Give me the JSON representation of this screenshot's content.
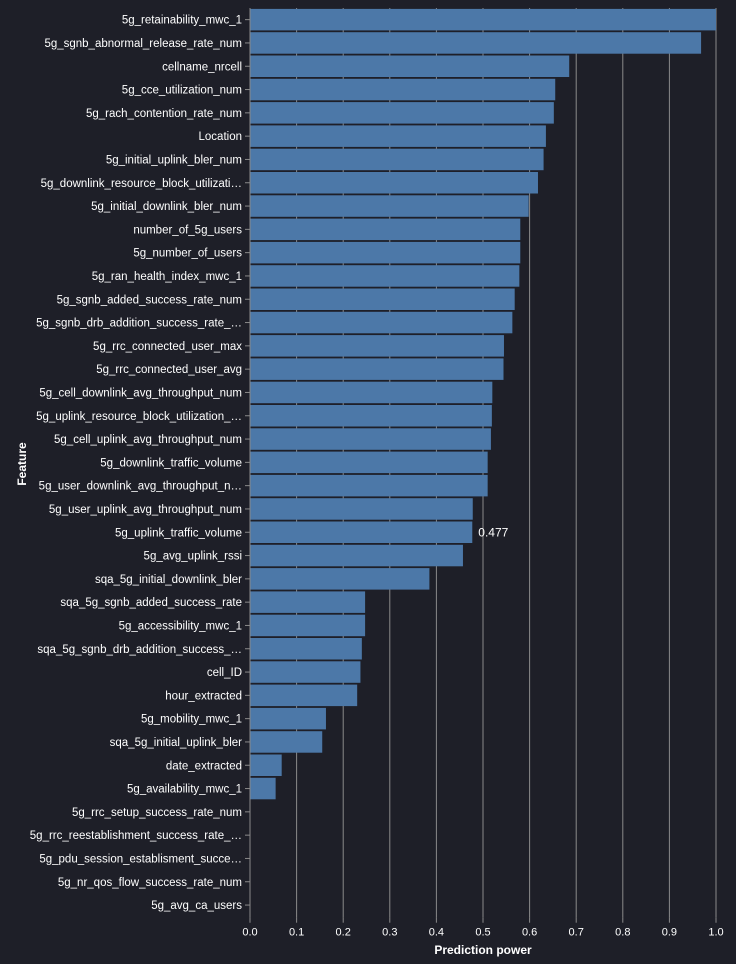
{
  "colors": {
    "background": "#1e1f28",
    "bar": "#4c78a8",
    "grid": "#8a8a8a",
    "axis": "#8a8a8a",
    "text": "#ffffff"
  },
  "chart_data": {
    "type": "bar",
    "orientation": "horizontal",
    "xlabel": "Prediction power",
    "ylabel": "Feature",
    "xlim": [
      0,
      1.0
    ],
    "x_ticks": [
      "0.0",
      "0.1",
      "0.2",
      "0.3",
      "0.4",
      "0.5",
      "0.6",
      "0.7",
      "0.8",
      "0.9",
      "1.0"
    ],
    "grid": true,
    "categories": [
      "5g_retainability_mwc_1",
      "5g_sgnb_abnormal_release_rate_num",
      "cellname_nrcell",
      "5g_cce_utilization_num",
      "5g_rach_contention_rate_num",
      "Location",
      "5g_initial_uplink_bler_num",
      "5g_downlink_resource_block_utilizati…",
      "5g_initial_downlink_bler_num",
      "number_of_5g_users",
      "5g_number_of_users",
      "5g_ran_health_index_mwc_1",
      "5g_sgnb_added_success_rate_num",
      "5g_sgnb_drb_addition_success_rate_…",
      "5g_rrc_connected_user_max",
      "5g_rrc_connected_user_avg",
      "5g_cell_downlink_avg_throughput_num",
      "5g_uplink_resource_block_utilization_…",
      "5g_cell_uplink_avg_throughput_num",
      "5g_downlink_traffic_volume",
      "5g_user_downlink_avg_throughput_n…",
      "5g_user_uplink_avg_throughput_num",
      "5g_uplink_traffic_volume",
      "5g_avg_uplink_rssi",
      "sqa_5g_initial_downlink_bler",
      "sqa_5g_sgnb_added_success_rate",
      "5g_accessibility_mwc_1",
      "sqa_5g_sgnb_drb_addition_success_…",
      "cell_ID",
      "hour_extracted",
      "5g_mobility_mwc_1",
      "sqa_5g_initial_uplink_bler",
      "date_extracted",
      "5g_availability_mwc_1",
      "5g_rrc_setup_success_rate_num",
      "5g_rrc_reestablishment_success_rate_…",
      "5g_pdu_session_establisment_succe…",
      "5g_nr_qos_flow_success_rate_num",
      "5g_avg_ca_users"
    ],
    "values": [
      1.0,
      0.968,
      0.685,
      0.655,
      0.652,
      0.635,
      0.63,
      0.618,
      0.598,
      0.58,
      0.58,
      0.578,
      0.568,
      0.563,
      0.545,
      0.544,
      0.52,
      0.519,
      0.517,
      0.51,
      0.51,
      0.478,
      0.477,
      0.457,
      0.385,
      0.247,
      0.247,
      0.24,
      0.237,
      0.23,
      0.163,
      0.155,
      0.068,
      0.055,
      0.0,
      0.0,
      0.0,
      0.0,
      0.0
    ],
    "annotations": [
      {
        "category": "5g_uplink_traffic_volume",
        "text": "0.477"
      }
    ]
  }
}
